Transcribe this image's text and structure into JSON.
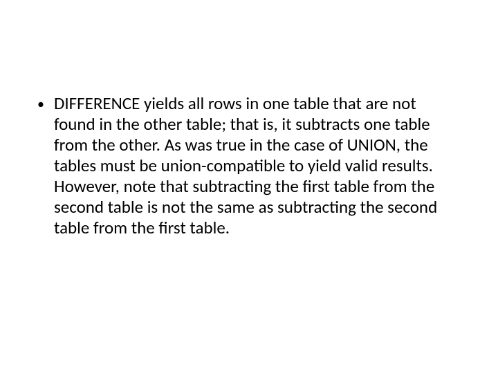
{
  "slide": {
    "background_color": "#ffffff",
    "text_color": "#000000",
    "font_family": "Calibri",
    "body_fontsize": 25,
    "line_height": 30,
    "bullet": {
      "marker": "•",
      "text": "DIFFERENCE yields all rows in one table that are not found in the other table; that is, it subtracts one table from the other. As was true in the case of UNION, the tables must be union-compatible to yield valid results. However, note that subtracting the first table from the second table is not the same as subtracting the second table from the first table."
    }
  }
}
